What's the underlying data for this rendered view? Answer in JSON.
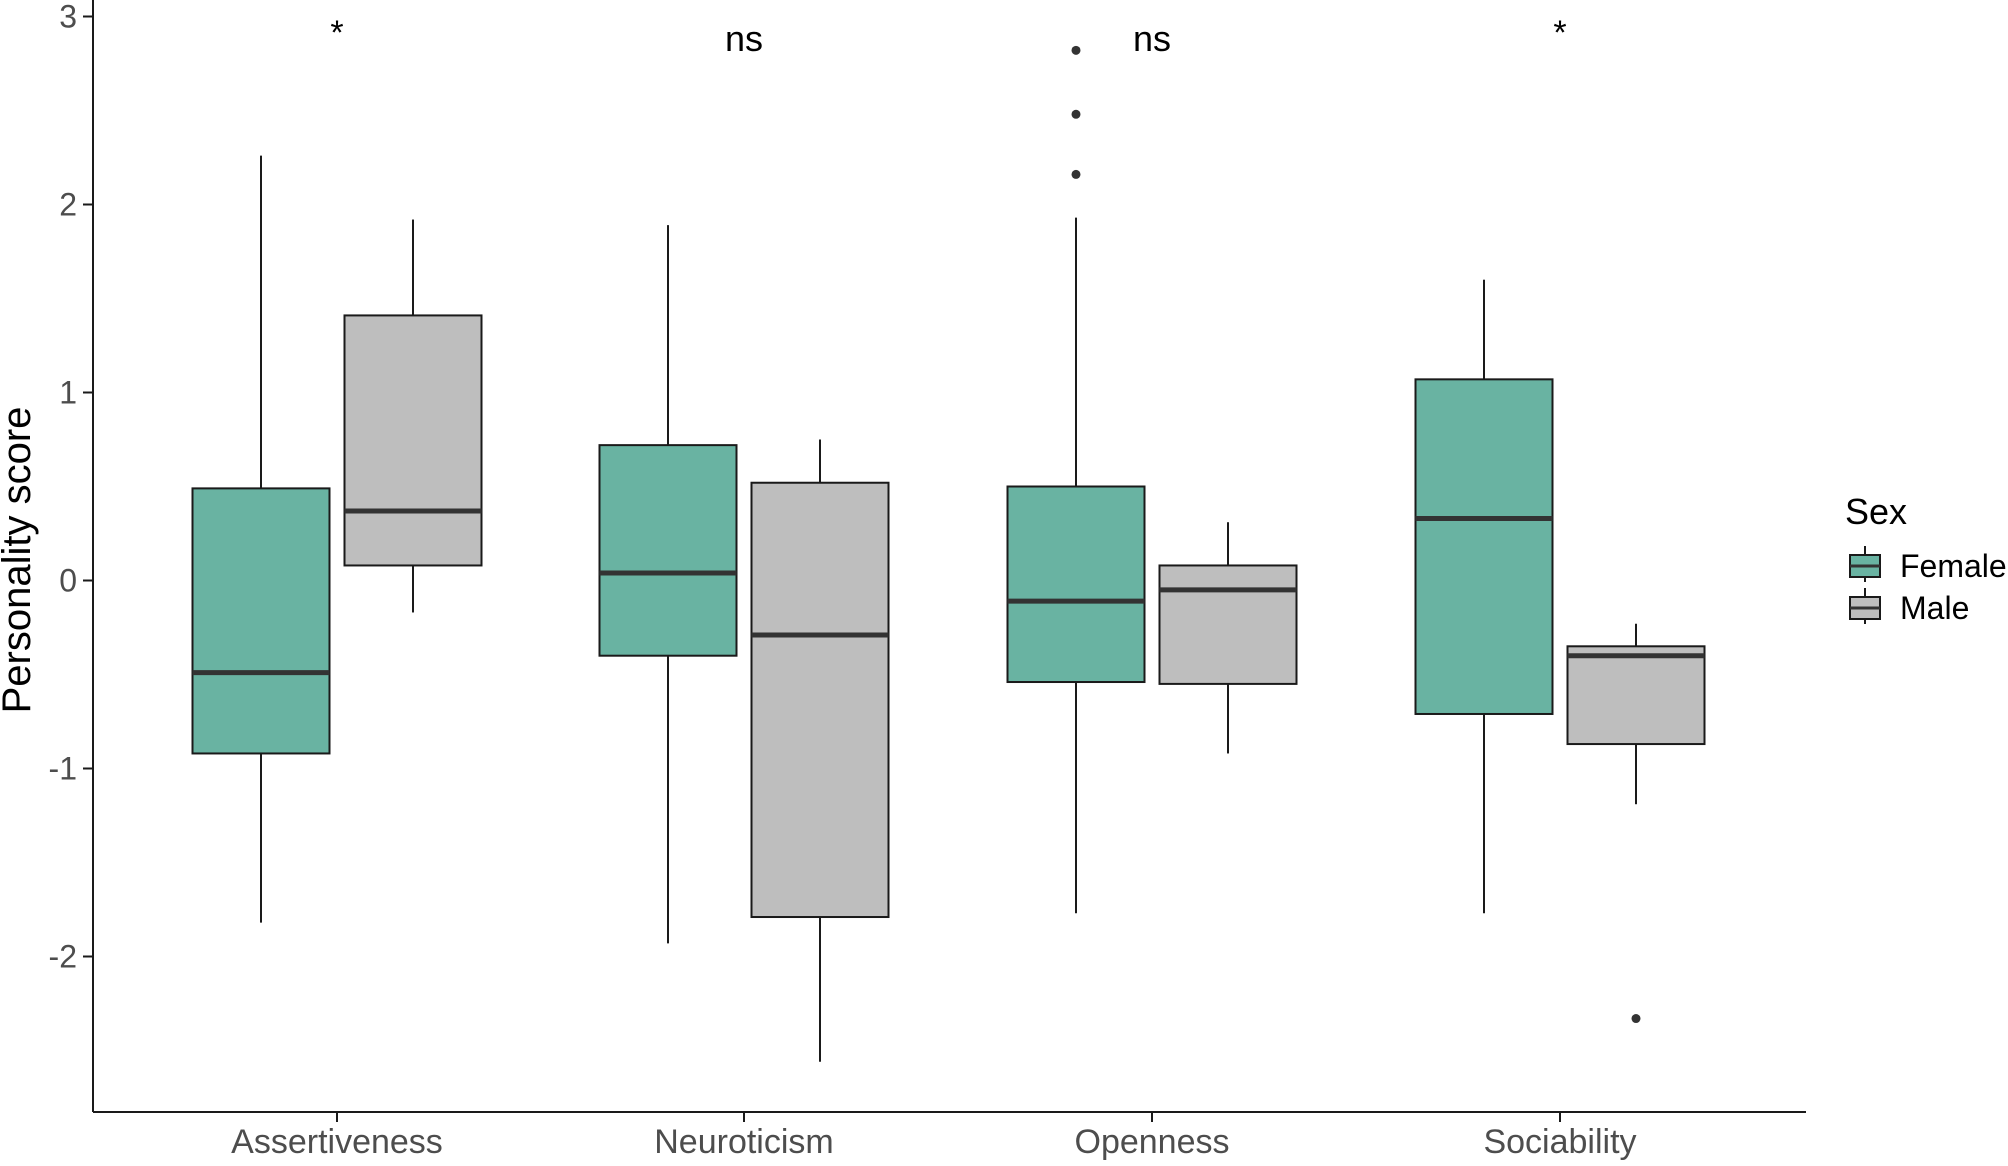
{
  "chart_data": {
    "type": "boxplot",
    "ylabel": "Personality score",
    "categories": [
      "Assertiveness",
      "Neuroticism",
      "Openness",
      "Sociability"
    ],
    "y_ticks": [
      -2,
      -1,
      0,
      1,
      2,
      3
    ],
    "y_tick_labels": [
      "-2",
      "-1",
      "0",
      "1",
      "2",
      "3"
    ],
    "ylim": [
      -2.8,
      3.05
    ],
    "grid": false,
    "legend": {
      "title": "Sex",
      "position": "right",
      "entries": [
        "Female",
        "Male"
      ]
    },
    "series": [
      {
        "name": "Female",
        "color": "#69b3a2",
        "boxes": [
          {
            "category": "Assertiveness",
            "lower_whisker": -1.82,
            "q1": -0.92,
            "median": -0.49,
            "q3": 0.49,
            "upper_whisker": 2.26,
            "outliers": []
          },
          {
            "category": "Neuroticism",
            "lower_whisker": -1.93,
            "q1": -0.4,
            "median": 0.04,
            "q3": 0.72,
            "upper_whisker": 1.89,
            "outliers": []
          },
          {
            "category": "Openness",
            "lower_whisker": -1.77,
            "q1": -0.54,
            "median": -0.11,
            "q3": 0.5,
            "upper_whisker": 1.93,
            "outliers": [
              2.16,
              2.48,
              2.82
            ]
          },
          {
            "category": "Sociability",
            "lower_whisker": -1.77,
            "q1": -0.71,
            "median": 0.33,
            "q3": 1.07,
            "upper_whisker": 1.6,
            "outliers": []
          }
        ]
      },
      {
        "name": "Male",
        "color": "#bebebe",
        "boxes": [
          {
            "category": "Assertiveness",
            "lower_whisker": -0.17,
            "q1": 0.08,
            "median": 0.37,
            "q3": 1.41,
            "upper_whisker": 1.92,
            "outliers": []
          },
          {
            "category": "Neuroticism",
            "lower_whisker": -2.56,
            "q1": -1.79,
            "median": -0.29,
            "q3": 0.52,
            "upper_whisker": 0.75,
            "outliers": []
          },
          {
            "category": "Openness",
            "lower_whisker": -0.92,
            "q1": -0.55,
            "median": -0.05,
            "q3": 0.08,
            "upper_whisker": 0.31,
            "outliers": []
          },
          {
            "category": "Sociability",
            "lower_whisker": -1.19,
            "q1": -0.87,
            "median": -0.4,
            "q3": -0.35,
            "upper_whisker": -0.23,
            "outliers": [
              -2.33
            ]
          }
        ]
      }
    ],
    "annotations": [
      {
        "category": "Assertiveness",
        "text": "*",
        "y": 2.95
      },
      {
        "category": "Neuroticism",
        "text": "ns",
        "y": 2.95
      },
      {
        "category": "Openness",
        "text": "ns",
        "y": 2.95
      },
      {
        "category": "Sociability",
        "text": "*",
        "y": 2.95
      }
    ]
  }
}
